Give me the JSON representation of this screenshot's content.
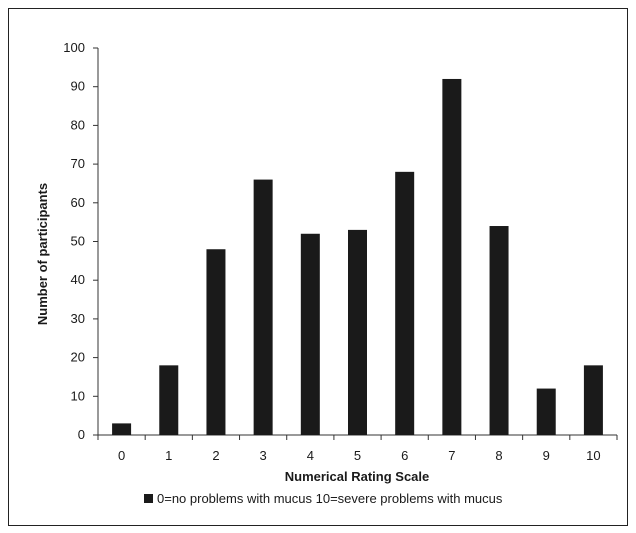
{
  "chart_data": {
    "type": "bar",
    "categories": [
      "0",
      "1",
      "2",
      "3",
      "4",
      "5",
      "6",
      "7",
      "8",
      "9",
      "10"
    ],
    "values": [
      3,
      18,
      48,
      66,
      52,
      53,
      68,
      92,
      54,
      12,
      18
    ],
    "xlabel": "Numerical Rating Scale",
    "ylabel": "Number of participants",
    "ylim": [
      0,
      100
    ],
    "yticks": [
      0,
      10,
      20,
      30,
      40,
      50,
      60,
      70,
      80,
      90,
      100
    ],
    "grid": false,
    "legend": {
      "position": "bottom",
      "entries": [
        "0=no problems with mucus 10=severe problems with mucus"
      ]
    },
    "colors": {
      "bar": "#1a1a1a",
      "axis": "#333333"
    }
  }
}
